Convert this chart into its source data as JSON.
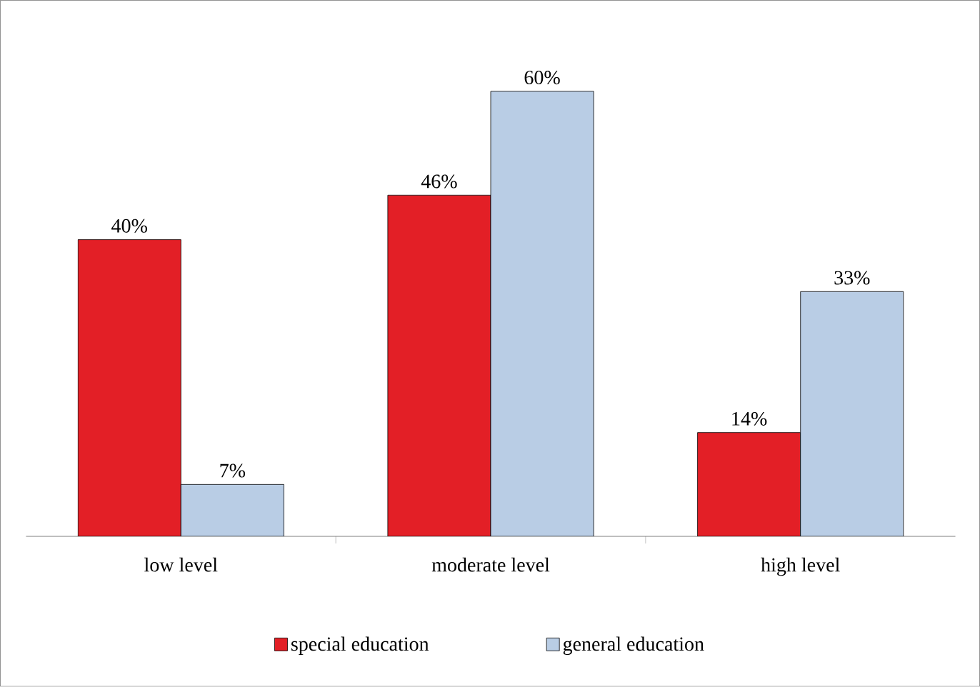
{
  "chart_data": {
    "type": "bar",
    "categories": [
      "low level",
      "moderate level",
      "high  level"
    ],
    "series": [
      {
        "name": "special education",
        "color": "#e31f26",
        "values": [
          40,
          46,
          14
        ],
        "value_labels": [
          "40%",
          "46%",
          "14%"
        ]
      },
      {
        "name": "general education",
        "color": "#b9cde5",
        "values": [
          7,
          60,
          33
        ],
        "value_labels": [
          "7%",
          "60%",
          "33%"
        ]
      }
    ],
    "legend": "bottom",
    "grid": false
  }
}
